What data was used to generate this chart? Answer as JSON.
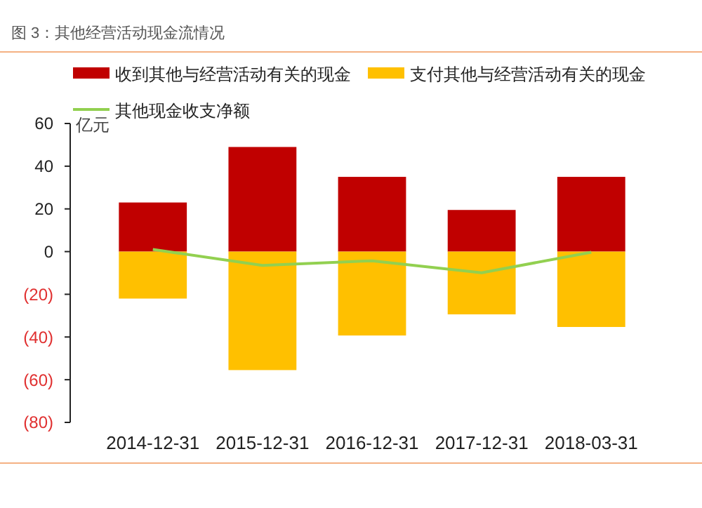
{
  "chart_data": {
    "type": "bar",
    "title": "图 3：其他经营活动现金流情况",
    "ylabel": "亿元",
    "categories": [
      "2014-12-31",
      "2015-12-31",
      "2016-12-31",
      "2017-12-31",
      "2018-03-31"
    ],
    "stacked": true,
    "series": [
      {
        "name": "收到其他与经营活动有关的现金",
        "color": "#c00000",
        "values": [
          23,
          49,
          35,
          19.5,
          35
        ]
      },
      {
        "name": "支付其他与经营活动有关的现金",
        "color": "#ffc000",
        "values": [
          -22,
          -55.5,
          -39.3,
          -29.4,
          -35.3
        ]
      },
      {
        "name": "其他现金收支净额",
        "color": "#92d050",
        "type": "line",
        "values": [
          1,
          -6.5,
          -4.3,
          -9.9,
          -0.3
        ]
      }
    ],
    "ylim": [
      -80,
      60
    ],
    "yticks": [
      60,
      40,
      20,
      0,
      {
        "value": -20,
        "label": "(20)"
      },
      {
        "value": -40,
        "label": "(40)"
      },
      {
        "value": -60,
        "label": "(60)"
      },
      {
        "value": -80,
        "label": "(80)"
      }
    ],
    "grid": false,
    "legend": "top left",
    "marker": "none"
  }
}
